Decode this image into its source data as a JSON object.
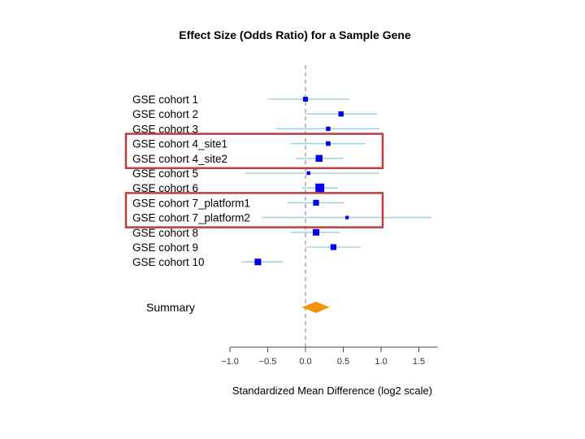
{
  "chart_data": {
    "type": "forest",
    "title": "Effect Size (Odds Ratio) for a Sample Gene",
    "xlabel": "Standardized Mean Difference (log2 scale)",
    "ylabel": "",
    "xlim": [
      -1.0,
      1.75
    ],
    "x_ticks": [
      -1.0,
      -0.5,
      0.0,
      0.5,
      1.0,
      1.5
    ],
    "x_tick_labels": [
      "−1.0",
      "−0.5",
      "0.0",
      "0.5",
      "1.0",
      "1.5"
    ],
    "reference_line": 0.0,
    "studies": [
      {
        "label": "GSE cohort 1",
        "estimate": 0.0,
        "ci_low": -0.5,
        "ci_high": 0.58,
        "weight": 0.25
      },
      {
        "label": "GSE cohort 2",
        "estimate": 0.47,
        "ci_low": 0.0,
        "ci_high": 0.95,
        "weight": 0.28
      },
      {
        "label": "GSE cohort 3",
        "estimate": 0.3,
        "ci_low": -0.4,
        "ci_high": 0.98,
        "weight": 0.2
      },
      {
        "label": "GSE cohort 4_site1",
        "estimate": 0.3,
        "ci_low": -0.2,
        "ci_high": 0.8,
        "weight": 0.22
      },
      {
        "label": "GSE cohort 4_site2",
        "estimate": 0.18,
        "ci_low": -0.13,
        "ci_high": 0.5,
        "weight": 0.45
      },
      {
        "label": "GSE cohort 5",
        "estimate": 0.04,
        "ci_low": -0.8,
        "ci_high": 0.98,
        "weight": 0.12
      },
      {
        "label": "GSE cohort 6",
        "estimate": 0.19,
        "ci_low": -0.05,
        "ci_high": 0.43,
        "weight": 0.65
      },
      {
        "label": "GSE cohort 7_platform1",
        "estimate": 0.14,
        "ci_low": -0.24,
        "ci_high": 0.52,
        "weight": 0.35
      },
      {
        "label": "GSE cohort 7_platform2",
        "estimate": 0.55,
        "ci_low": -0.58,
        "ci_high": 1.67,
        "weight": 0.1
      },
      {
        "label": "GSE cohort 8",
        "estimate": 0.14,
        "ci_low": -0.2,
        "ci_high": 0.45,
        "weight": 0.42
      },
      {
        "label": "GSE cohort 9",
        "estimate": 0.37,
        "ci_low": 0.0,
        "ci_high": 0.73,
        "weight": 0.35
      },
      {
        "label": "GSE cohort 10",
        "estimate": -0.63,
        "ci_low": -0.85,
        "ci_high": -0.3,
        "weight": 0.42
      }
    ],
    "summary": {
      "label": "Summary",
      "estimate": 0.14,
      "ci_low": -0.05,
      "ci_high": 0.32
    },
    "highlight_groups": [
      [
        "GSE cohort 4_site1",
        "GSE cohort 4_site2"
      ],
      [
        "GSE cohort 7_platform1",
        "GSE cohort 7_platform2"
      ]
    ],
    "grid": false,
    "colors": {
      "point": "#0000ee",
      "ci_line": "#a8d4e0",
      "summary": "#f0920a",
      "reference_line": "#aaaaaa",
      "highlight_box": "#b84040",
      "axis": "#444444"
    }
  }
}
